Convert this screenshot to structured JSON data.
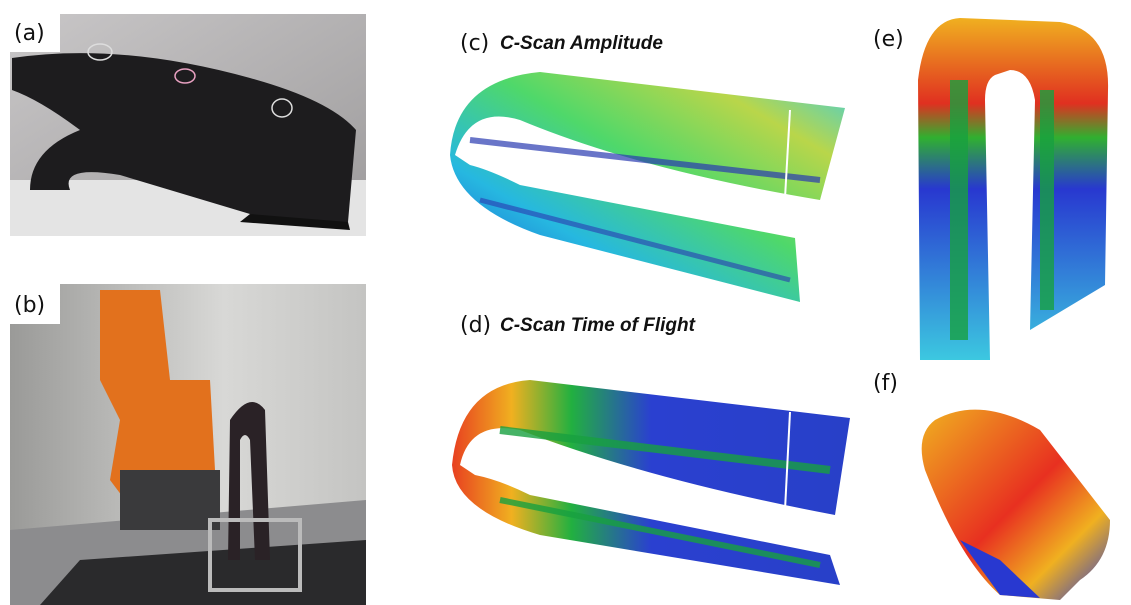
{
  "panels": {
    "a": {
      "label": "(a)"
    },
    "b": {
      "label": "(b)"
    },
    "c": {
      "label": "(c)",
      "title": "C-Scan Amplitude"
    },
    "d": {
      "label": "(d)",
      "title": "C-Scan Time of Flight"
    },
    "e": {
      "label": "(e)"
    },
    "f": {
      "label": "(f)"
    }
  }
}
